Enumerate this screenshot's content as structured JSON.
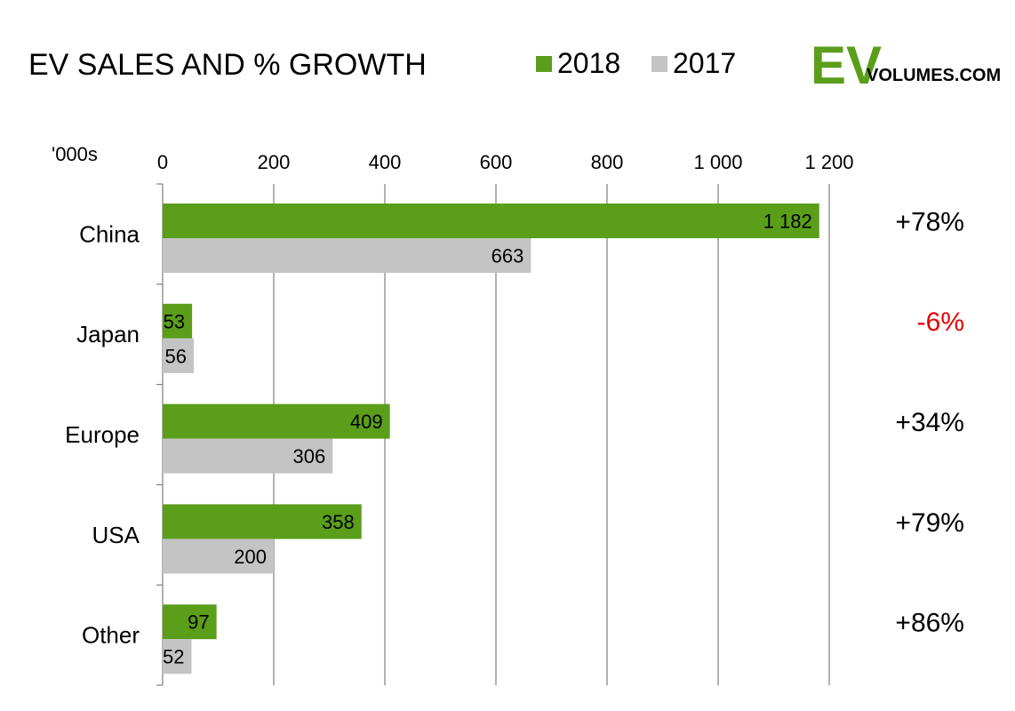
{
  "colors": {
    "series_2018": "#5a9e1a",
    "series_2017": "#c4c4c4",
    "negative": "#e60000",
    "gridline": "#7f7f7f",
    "logo_ev": "#5a9e1a"
  },
  "logo": {
    "ev": "EV",
    "rest": "VOLUMES.COM"
  },
  "chart_data": {
    "type": "bar",
    "orientation": "horizontal",
    "title": "EV SALES AND % GROWTH",
    "unit_label": "'000s",
    "categories": [
      "China",
      "Japan",
      "Europe",
      "USA",
      "Other"
    ],
    "series": [
      {
        "name": "2018",
        "values": [
          1182,
          53,
          409,
          358,
          97
        ],
        "labels": [
          "1 182",
          "53",
          "409",
          "358",
          "97"
        ]
      },
      {
        "name": "2017",
        "values": [
          663,
          56,
          306,
          200,
          52
        ],
        "labels": [
          "663",
          "56",
          "306",
          "200",
          "52"
        ]
      }
    ],
    "growth": [
      "+78%",
      "-6%",
      "+34%",
      "+79%",
      "+86%"
    ],
    "xlim": [
      0,
      1200
    ],
    "ticks": [
      0,
      200,
      400,
      600,
      800,
      1000,
      1200
    ],
    "tick_labels": [
      "0",
      "200",
      "400",
      "600",
      "800",
      "1 000",
      "1 200"
    ],
    "grid": true,
    "legend_position": "top"
  }
}
